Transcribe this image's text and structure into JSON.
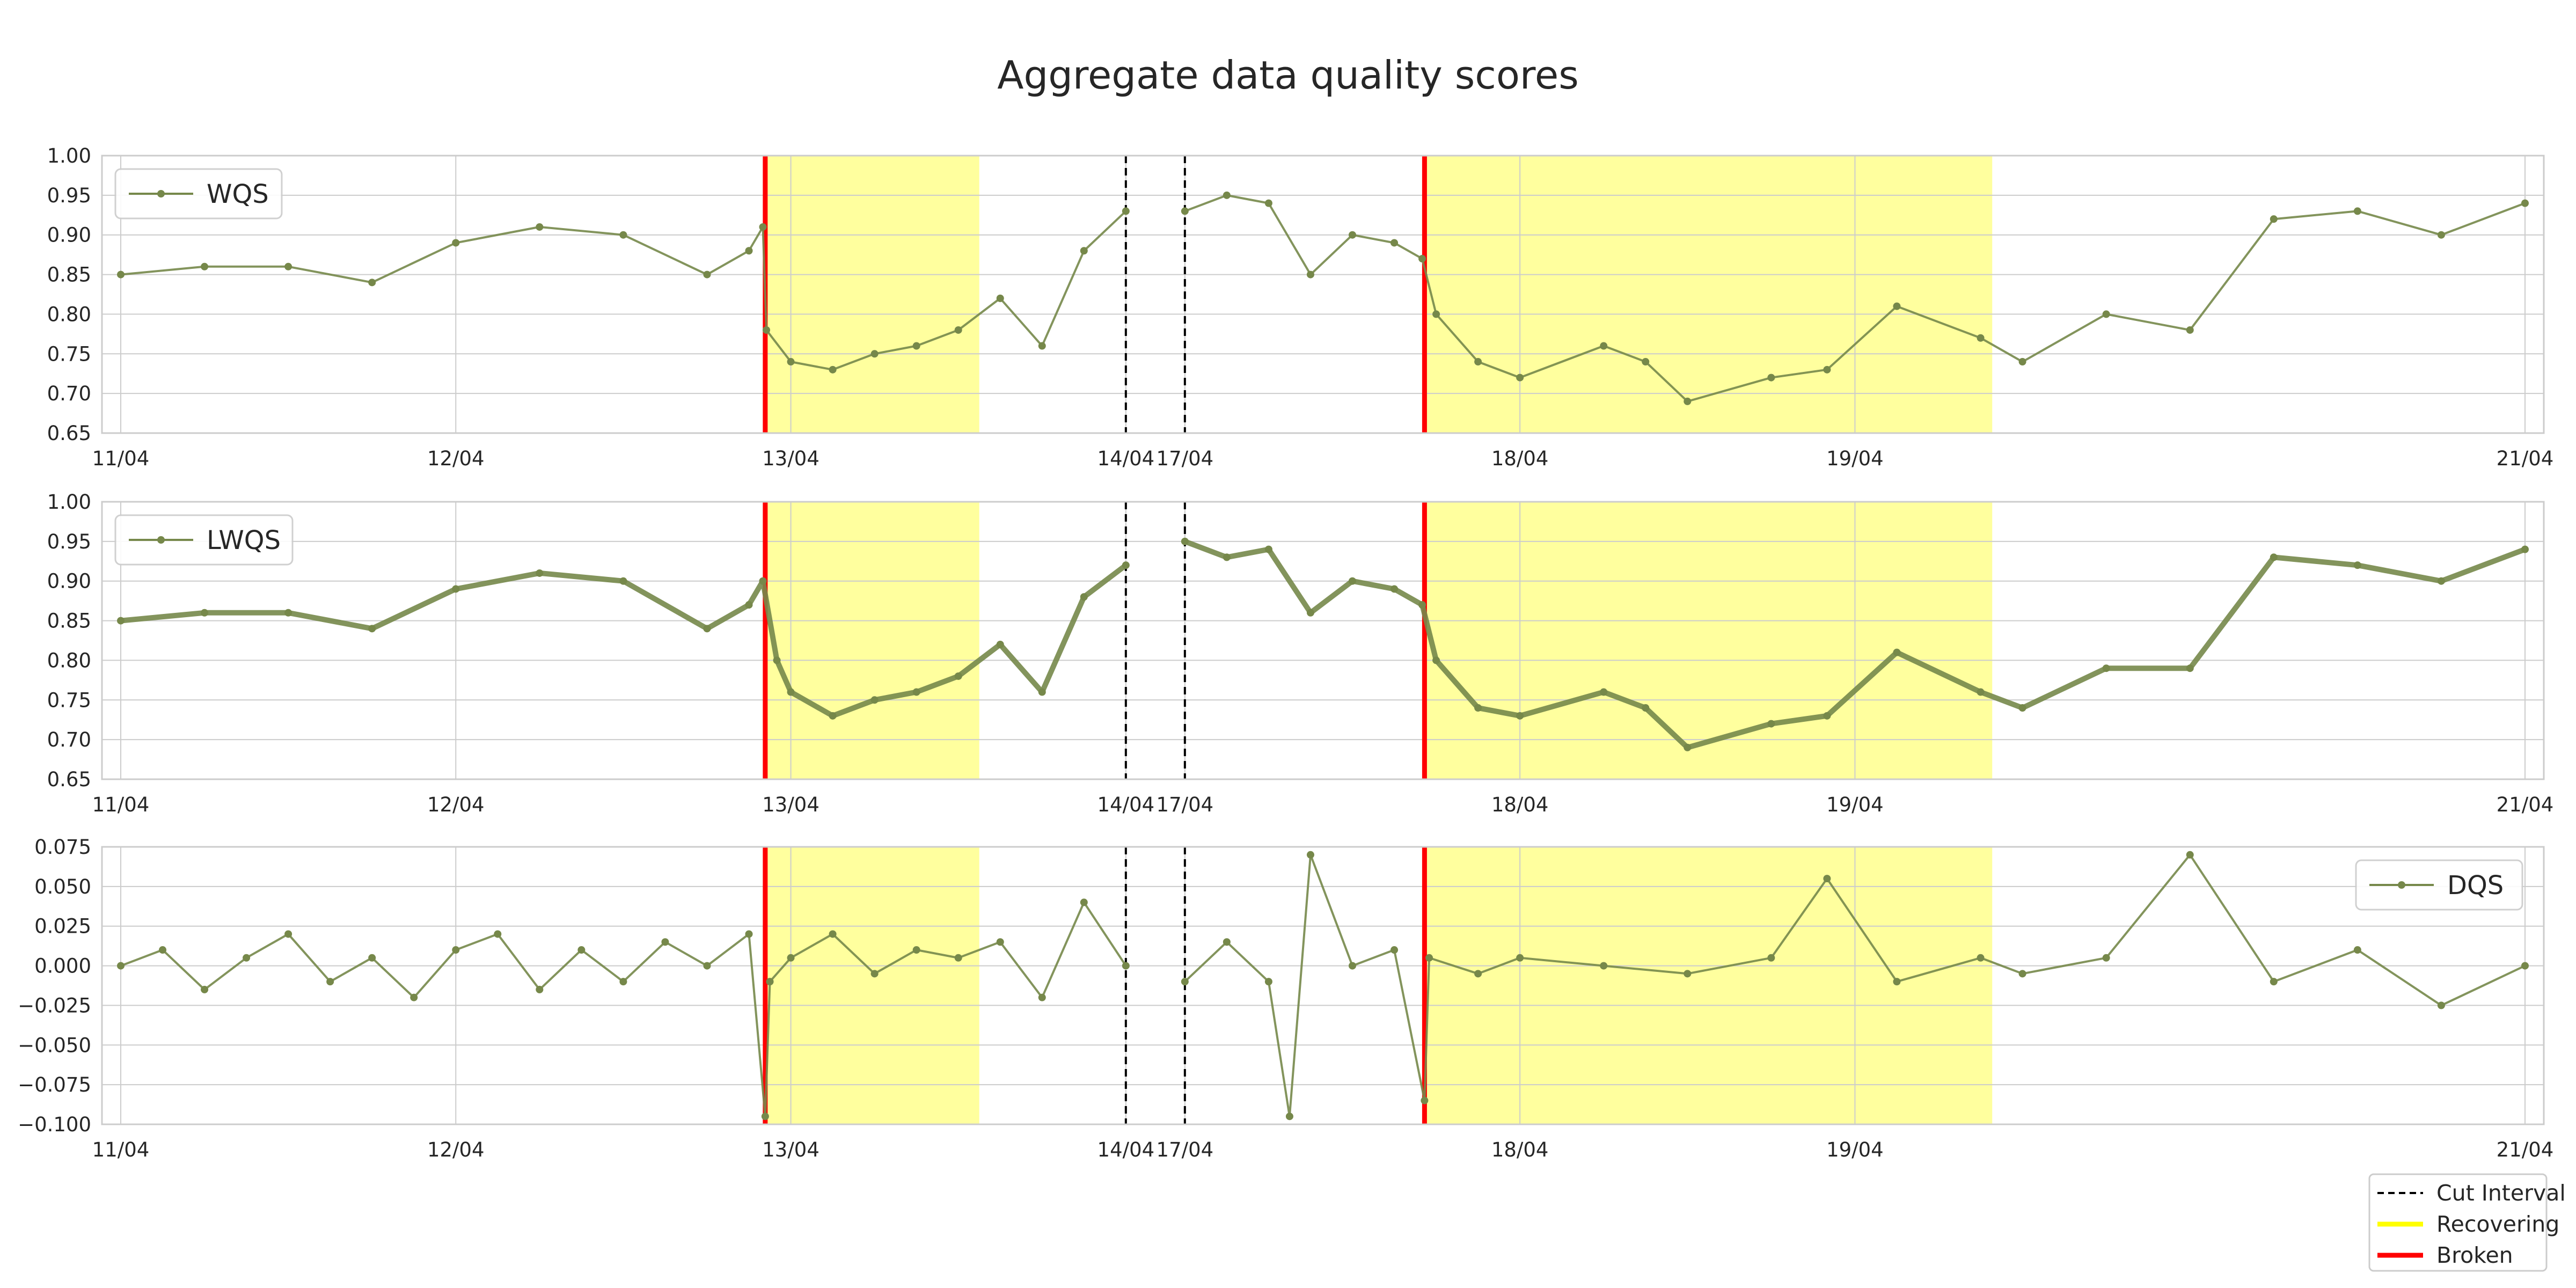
{
  "chart_data": {
    "type": "line",
    "title": "Aggregate data quality scores",
    "colors": {
      "series": "#76884a",
      "recovering": "#ffff00",
      "recovering_fill": "#ffff99",
      "broken": "#ff0000",
      "cut": "#000000",
      "grid": "#cccccc",
      "axes_edge": "#cccccc"
    },
    "x_segments": [
      {
        "start": "2024-04-11",
        "end": "2024-04-14"
      },
      {
        "start": "2024-04-17",
        "end": "2024-04-21"
      }
    ],
    "x_ticks": [
      "11/04",
      "12/04",
      "13/04",
      "14/04",
      "17/04",
      "18/04",
      "19/04",
      "21/04"
    ],
    "x_tick_dates": [
      "2024-04-11",
      "2024-04-12",
      "2024-04-13",
      "2024-04-14",
      "2024-04-17",
      "2024-04-18",
      "2024-04-19",
      "2024-04-21"
    ],
    "cut_interval": [
      "2024-04-14",
      "2024-04-17"
    ],
    "broken_events": [
      "2024-04-12T22:10",
      "2024-04-17T17:10"
    ],
    "recovering_intervals": [
      {
        "start": "2024-04-12T22:15",
        "end": "2024-04-13T13:30"
      },
      {
        "start": "2024-04-17T17:10",
        "end": "2024-04-19T09:50"
      }
    ],
    "legend_bottom": {
      "placement": "lower-right",
      "entries": [
        {
          "label": "Cut Interval",
          "style": "dashed",
          "color": "#000000"
        },
        {
          "label": "Recovering",
          "style": "solid",
          "color": "#ffff00"
        },
        {
          "label": "Broken",
          "style": "solid",
          "color": "#ff0000"
        }
      ]
    },
    "panels": [
      {
        "series_name": "WQS",
        "legend_placement": "upper-left",
        "ylim": [
          0.65,
          1.0
        ],
        "y_ticks": [
          "0.65",
          "0.70",
          "0.75",
          "0.80",
          "0.85",
          "0.90",
          "0.95",
          "1.00"
        ],
        "y_tick_values": [
          0.65,
          0.7,
          0.75,
          0.8,
          0.85,
          0.9,
          0.95,
          1.0
        ],
        "grid": true,
        "x": [
          "2024-04-11T00:00",
          "2024-04-11T06:00",
          "2024-04-11T12:00",
          "2024-04-11T18:00",
          "2024-04-12T00:00",
          "2024-04-12T06:00",
          "2024-04-12T12:00",
          "2024-04-12T18:00",
          "2024-04-12T21:00",
          "2024-04-12T22:00",
          "2024-04-12T22:15",
          "2024-04-13T00:00",
          "2024-04-13T03:00",
          "2024-04-13T06:00",
          "2024-04-13T09:00",
          "2024-04-13T12:00",
          "2024-04-13T15:00",
          "2024-04-13T18:00",
          "2024-04-13T21:00",
          "2024-04-14T00:00",
          "2024-04-17T00:00",
          "2024-04-17T03:00",
          "2024-04-17T06:00",
          "2024-04-17T09:00",
          "2024-04-17T12:00",
          "2024-04-17T15:00",
          "2024-04-17T17:00",
          "2024-04-17T18:00",
          "2024-04-17T21:00",
          "2024-04-18T00:00",
          "2024-04-18T06:00",
          "2024-04-18T09:00",
          "2024-04-18T12:00",
          "2024-04-18T18:00",
          "2024-04-18T22:00",
          "2024-04-19T03:00",
          "2024-04-19T09:00",
          "2024-04-19T12:00",
          "2024-04-19T18:00",
          "2024-04-20T00:00",
          "2024-04-20T06:00",
          "2024-04-20T12:00",
          "2024-04-20T18:00",
          "2024-04-21T00:00"
        ],
        "values": [
          0.85,
          0.86,
          0.86,
          0.84,
          0.89,
          0.91,
          0.9,
          0.85,
          0.88,
          0.91,
          0.78,
          0.74,
          0.73,
          0.75,
          0.76,
          0.78,
          0.82,
          0.76,
          0.88,
          0.93,
          0.93,
          0.95,
          0.94,
          0.85,
          0.9,
          0.89,
          0.87,
          0.8,
          0.74,
          0.72,
          0.76,
          0.74,
          0.69,
          0.72,
          0.73,
          0.81,
          0.77,
          0.74,
          0.8,
          0.78,
          0.92,
          0.93,
          0.9,
          0.94
        ]
      },
      {
        "series_name": "LWQS",
        "legend_placement": "upper-left",
        "ylim": [
          0.65,
          1.0
        ],
        "y_ticks": [
          "0.65",
          "0.70",
          "0.75",
          "0.80",
          "0.85",
          "0.90",
          "0.95",
          "1.00"
        ],
        "y_tick_values": [
          0.65,
          0.7,
          0.75,
          0.8,
          0.85,
          0.9,
          0.95,
          1.0
        ],
        "grid": true,
        "x": [
          "2024-04-11T00:00",
          "2024-04-11T06:00",
          "2024-04-11T12:00",
          "2024-04-11T18:00",
          "2024-04-12T00:00",
          "2024-04-12T06:00",
          "2024-04-12T12:00",
          "2024-04-12T18:00",
          "2024-04-12T21:00",
          "2024-04-12T22:00",
          "2024-04-12T23:00",
          "2024-04-13T00:00",
          "2024-04-13T03:00",
          "2024-04-13T06:00",
          "2024-04-13T09:00",
          "2024-04-13T12:00",
          "2024-04-13T15:00",
          "2024-04-13T18:00",
          "2024-04-13T21:00",
          "2024-04-14T00:00",
          "2024-04-17T00:00",
          "2024-04-17T03:00",
          "2024-04-17T06:00",
          "2024-04-17T09:00",
          "2024-04-17T12:00",
          "2024-04-17T15:00",
          "2024-04-17T17:00",
          "2024-04-17T18:00",
          "2024-04-17T21:00",
          "2024-04-18T00:00",
          "2024-04-18T06:00",
          "2024-04-18T09:00",
          "2024-04-18T12:00",
          "2024-04-18T18:00",
          "2024-04-18T22:00",
          "2024-04-19T03:00",
          "2024-04-19T09:00",
          "2024-04-19T12:00",
          "2024-04-19T18:00",
          "2024-04-20T00:00",
          "2024-04-20T06:00",
          "2024-04-20T12:00",
          "2024-04-20T18:00",
          "2024-04-21T00:00"
        ],
        "values": [
          0.85,
          0.86,
          0.86,
          0.84,
          0.89,
          0.91,
          0.9,
          0.84,
          0.87,
          0.9,
          0.8,
          0.76,
          0.73,
          0.75,
          0.76,
          0.78,
          0.82,
          0.76,
          0.88,
          0.92,
          0.95,
          0.93,
          0.94,
          0.86,
          0.9,
          0.89,
          0.87,
          0.8,
          0.74,
          0.73,
          0.76,
          0.74,
          0.69,
          0.72,
          0.73,
          0.81,
          0.76,
          0.74,
          0.79,
          0.79,
          0.93,
          0.92,
          0.9,
          0.94
        ]
      },
      {
        "series_name": "DQS",
        "legend_placement": "upper-right",
        "ylim": [
          -0.1,
          0.075
        ],
        "y_ticks": [
          "0.075",
          "0.050",
          "0.025",
          "0.000",
          "−0.025",
          "−0.050",
          "−0.075",
          "−0.100"
        ],
        "y_tick_values": [
          0.075,
          0.05,
          0.025,
          0.0,
          -0.025,
          -0.05,
          -0.075,
          -0.1
        ],
        "grid": true,
        "x": [
          "2024-04-11T00:00",
          "2024-04-11T03:00",
          "2024-04-11T06:00",
          "2024-04-11T09:00",
          "2024-04-11T12:00",
          "2024-04-11T15:00",
          "2024-04-11T18:00",
          "2024-04-11T21:00",
          "2024-04-12T00:00",
          "2024-04-12T03:00",
          "2024-04-12T06:00",
          "2024-04-12T09:00",
          "2024-04-12T12:00",
          "2024-04-12T15:00",
          "2024-04-12T18:00",
          "2024-04-12T21:00",
          "2024-04-12T22:10",
          "2024-04-12T22:30",
          "2024-04-13T00:00",
          "2024-04-13T03:00",
          "2024-04-13T06:00",
          "2024-04-13T09:00",
          "2024-04-13T12:00",
          "2024-04-13T15:00",
          "2024-04-13T18:00",
          "2024-04-13T21:00",
          "2024-04-14T00:00",
          "2024-04-17T00:00",
          "2024-04-17T03:00",
          "2024-04-17T06:00",
          "2024-04-17T07:30",
          "2024-04-17T09:00",
          "2024-04-17T12:00",
          "2024-04-17T15:00",
          "2024-04-17T17:10",
          "2024-04-17T17:30",
          "2024-04-17T21:00",
          "2024-04-18T00:00",
          "2024-04-18T06:00",
          "2024-04-18T12:00",
          "2024-04-18T18:00",
          "2024-04-18T22:00",
          "2024-04-19T03:00",
          "2024-04-19T09:00",
          "2024-04-19T12:00",
          "2024-04-19T18:00",
          "2024-04-20T00:00",
          "2024-04-20T06:00",
          "2024-04-20T12:00",
          "2024-04-20T18:00",
          "2024-04-21T00:00"
        ],
        "values": [
          0.0,
          0.01,
          -0.015,
          0.005,
          0.02,
          -0.01,
          0.005,
          -0.02,
          0.01,
          0.02,
          -0.015,
          0.01,
          -0.01,
          0.015,
          0.0,
          0.02,
          -0.095,
          -0.01,
          0.005,
          0.02,
          -0.005,
          0.01,
          0.005,
          0.015,
          -0.02,
          0.04,
          0.0,
          -0.01,
          0.015,
          -0.01,
          -0.095,
          0.07,
          0.0,
          0.01,
          -0.085,
          0.005,
          -0.005,
          0.005,
          0.0,
          -0.005,
          0.005,
          0.055,
          -0.01,
          0.005,
          -0.005,
          0.005,
          0.07,
          -0.01,
          0.01,
          -0.025,
          0.0
        ]
      }
    ]
  }
}
